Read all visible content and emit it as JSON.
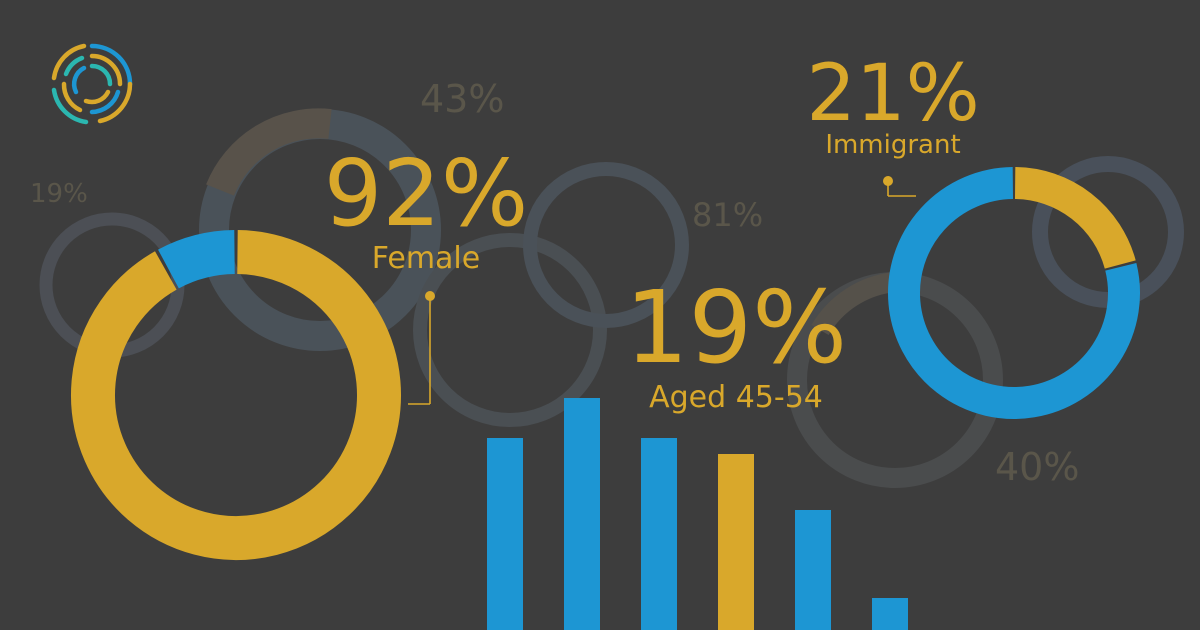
{
  "colors": {
    "background": "#3d3d3d",
    "gold": "#d9a82b",
    "blue": "#1d96d3",
    "faint": "#5e5a4c"
  },
  "logo": {
    "icon": "concentric-arc-logo-icon"
  },
  "chart_data": [
    {
      "type": "pie",
      "title": "",
      "values": [
        {
          "label": "Female",
          "value": 92,
          "color": "#d9a82b"
        },
        {
          "value": 8,
          "color": "#1d96d3"
        }
      ],
      "headline": "92%",
      "caption": "Female"
    },
    {
      "type": "pie",
      "title": "",
      "values": [
        {
          "label": "Immigrant",
          "value": 21,
          "color": "#d9a82b"
        },
        {
          "value": 79,
          "color": "#1d96d3"
        }
      ],
      "headline": "21%",
      "caption": "Immigrant"
    },
    {
      "type": "bar",
      "title": "",
      "categories": [
        "",
        "",
        "",
        "",
        "",
        ""
      ],
      "values": [
        24,
        29,
        24,
        22,
        15,
        4
      ],
      "colors": [
        "#1d96d3",
        "#1d96d3",
        "#1d96d3",
        "#d9a82b",
        "#1d96d3",
        "#1d96d3"
      ],
      "highlight_headline": "19%",
      "highlight_caption": "Aged 45-54",
      "ylim": [
        0,
        30
      ]
    }
  ],
  "background_labels": [
    "43%",
    "19%",
    "81%",
    "40%"
  ]
}
